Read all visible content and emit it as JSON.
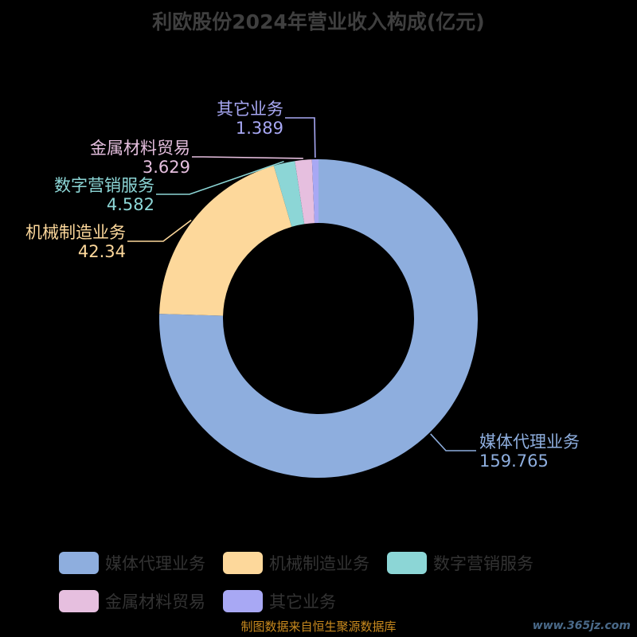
{
  "chart_data": {
    "type": "pie",
    "title": "利欧股份2024年营业收入构成(亿元)",
    "series": [
      {
        "name": "媒体代理业务",
        "value": 159.765,
        "value_label": "159.765",
        "color": "#8eaede"
      },
      {
        "name": "机械制造业务",
        "value": 42.34,
        "value_label": "42.34",
        "color": "#fdd89b"
      },
      {
        "name": "数字营销服务",
        "value": 4.582,
        "value_label": "4.582",
        "color": "#8cd6d6"
      },
      {
        "name": "金属材料贸易",
        "value": 3.629,
        "value_label": "3.629",
        "color": "#e6bfdf"
      },
      {
        "name": "其它业务",
        "value": 1.389,
        "value_label": "1.389",
        "color": "#a8a8f4"
      }
    ],
    "legend_position": "bottom",
    "donut": true
  },
  "footer": {
    "source": "制图数据来自恒生聚源数据库",
    "watermark": "www.365jz.com"
  }
}
